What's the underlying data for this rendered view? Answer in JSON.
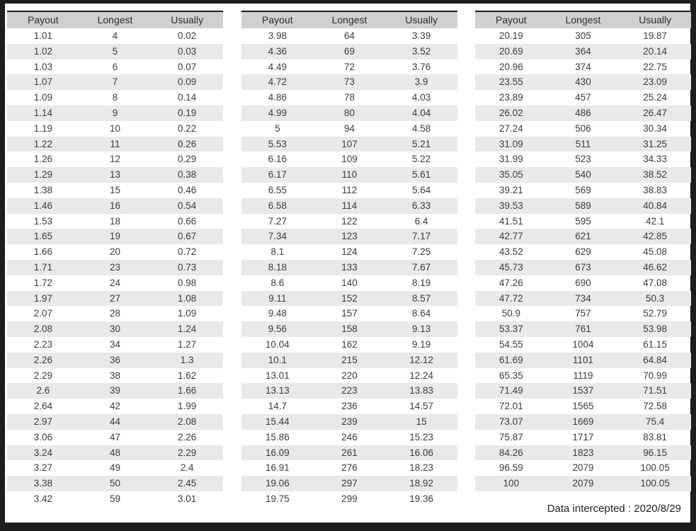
{
  "chart_data": [
    {
      "type": "table",
      "columns": [
        "Payout",
        "Longest",
        "Usually"
      ],
      "rows": [
        [
          "1.01",
          "4",
          "0.02"
        ],
        [
          "1.02",
          "5",
          "0.03"
        ],
        [
          "1.03",
          "6",
          "0.07"
        ],
        [
          "1.07",
          "7",
          "0.09"
        ],
        [
          "1.09",
          "8",
          "0.14"
        ],
        [
          "1.14",
          "9",
          "0.19"
        ],
        [
          "1.19",
          "10",
          "0.22"
        ],
        [
          "1.22",
          "11",
          "0.26"
        ],
        [
          "1.26",
          "12",
          "0.29"
        ],
        [
          "1.29",
          "13",
          "0.38"
        ],
        [
          "1.38",
          "15",
          "0.46"
        ],
        [
          "1.46",
          "16",
          "0.54"
        ],
        [
          "1.53",
          "18",
          "0.66"
        ],
        [
          "1.65",
          "19",
          "0.67"
        ],
        [
          "1.66",
          "20",
          "0.72"
        ],
        [
          "1.71",
          "23",
          "0.73"
        ],
        [
          "1.72",
          "24",
          "0.98"
        ],
        [
          "1.97",
          "27",
          "1.08"
        ],
        [
          "2.07",
          "28",
          "1.09"
        ],
        [
          "2.08",
          "30",
          "1.24"
        ],
        [
          "2.23",
          "34",
          "1.27"
        ],
        [
          "2.26",
          "36",
          "1.3"
        ],
        [
          "2.29",
          "38",
          "1.62"
        ],
        [
          "2.6",
          "39",
          "1.66"
        ],
        [
          "2.64",
          "42",
          "1.99"
        ],
        [
          "2.97",
          "44",
          "2.08"
        ],
        [
          "3.06",
          "47",
          "2.26"
        ],
        [
          "3.24",
          "48",
          "2.29"
        ],
        [
          "3.27",
          "49",
          "2.4"
        ],
        [
          "3.38",
          "50",
          "2.45"
        ],
        [
          "3.42",
          "59",
          "3.01"
        ]
      ]
    },
    {
      "type": "table",
      "columns": [
        "Payout",
        "Longest",
        "Usually"
      ],
      "rows": [
        [
          "3.98",
          "64",
          "3.39"
        ],
        [
          "4.36",
          "69",
          "3.52"
        ],
        [
          "4.49",
          "72",
          "3.76"
        ],
        [
          "4.72",
          "73",
          "3.9"
        ],
        [
          "4.86",
          "78",
          "4.03"
        ],
        [
          "4.99",
          "80",
          "4.04"
        ],
        [
          "5",
          "94",
          "4.58"
        ],
        [
          "5.53",
          "107",
          "5.21"
        ],
        [
          "6.16",
          "109",
          "5.22"
        ],
        [
          "6.17",
          "110",
          "5.61"
        ],
        [
          "6.55",
          "112",
          "5.64"
        ],
        [
          "6.58",
          "114",
          "6.33"
        ],
        [
          "7.27",
          "122",
          "6.4"
        ],
        [
          "7.34",
          "123",
          "7.17"
        ],
        [
          "8.1",
          "124",
          "7.25"
        ],
        [
          "8.18",
          "133",
          "7.67"
        ],
        [
          "8.6",
          "140",
          "8.19"
        ],
        [
          "9.11",
          "152",
          "8.57"
        ],
        [
          "9.48",
          "157",
          "8.64"
        ],
        [
          "9.56",
          "158",
          "9.13"
        ],
        [
          "10.04",
          "162",
          "9.19"
        ],
        [
          "10.1",
          "215",
          "12.12"
        ],
        [
          "13.01",
          "220",
          "12.24"
        ],
        [
          "13.13",
          "223",
          "13.83"
        ],
        [
          "14.7",
          "236",
          "14.57"
        ],
        [
          "15.44",
          "239",
          "15"
        ],
        [
          "15.86",
          "246",
          "15.23"
        ],
        [
          "16.09",
          "261",
          "16.06"
        ],
        [
          "16.91",
          "276",
          "18.23"
        ],
        [
          "19.06",
          "297",
          "18.92"
        ],
        [
          "19.75",
          "299",
          "19.36"
        ]
      ]
    },
    {
      "type": "table",
      "columns": [
        "Payout",
        "Longest",
        "Usually"
      ],
      "rows": [
        [
          "20.19",
          "305",
          "19.87"
        ],
        [
          "20.69",
          "364",
          "20.14"
        ],
        [
          "20.96",
          "374",
          "22.75"
        ],
        [
          "23.55",
          "430",
          "23.09"
        ],
        [
          "23.89",
          "457",
          "25.24"
        ],
        [
          "26.02",
          "486",
          "26.47"
        ],
        [
          "27.24",
          "506",
          "30.34"
        ],
        [
          "31.09",
          "511",
          "31.25"
        ],
        [
          "31.99",
          "523",
          "34.33"
        ],
        [
          "35.05",
          "540",
          "38.52"
        ],
        [
          "39.21",
          "569",
          "38.83"
        ],
        [
          "39.53",
          "589",
          "40.84"
        ],
        [
          "41.51",
          "595",
          "42.1"
        ],
        [
          "42.77",
          "621",
          "42.85"
        ],
        [
          "43.52",
          "629",
          "45.08"
        ],
        [
          "45.73",
          "673",
          "46.62"
        ],
        [
          "47.26",
          "690",
          "47.08"
        ],
        [
          "47.72",
          "734",
          "50.3"
        ],
        [
          "50.9",
          "757",
          "52.79"
        ],
        [
          "53.37",
          "761",
          "53.98"
        ],
        [
          "54.55",
          "1004",
          "61.15"
        ],
        [
          "61.69",
          "1101",
          "64.84"
        ],
        [
          "65.35",
          "1119",
          "70.99"
        ],
        [
          "71.49",
          "1537",
          "71.51"
        ],
        [
          "72.01",
          "1565",
          "72.58"
        ],
        [
          "73.07",
          "1669",
          "75.4"
        ],
        [
          "75.87",
          "1717",
          "83.81"
        ],
        [
          "84.26",
          "1823",
          "96.15"
        ],
        [
          "96.59",
          "2079",
          "100.05"
        ],
        [
          "100",
          "2079",
          "100.05"
        ]
      ]
    }
  ],
  "footer": {
    "label": "Data intercepted : 2020/8/29"
  },
  "colors": {
    "page_border": "#1d1d1d",
    "header_bg": "#d0d0d0",
    "stripe": "#e9e9e9",
    "text": "#3c3c3c"
  }
}
